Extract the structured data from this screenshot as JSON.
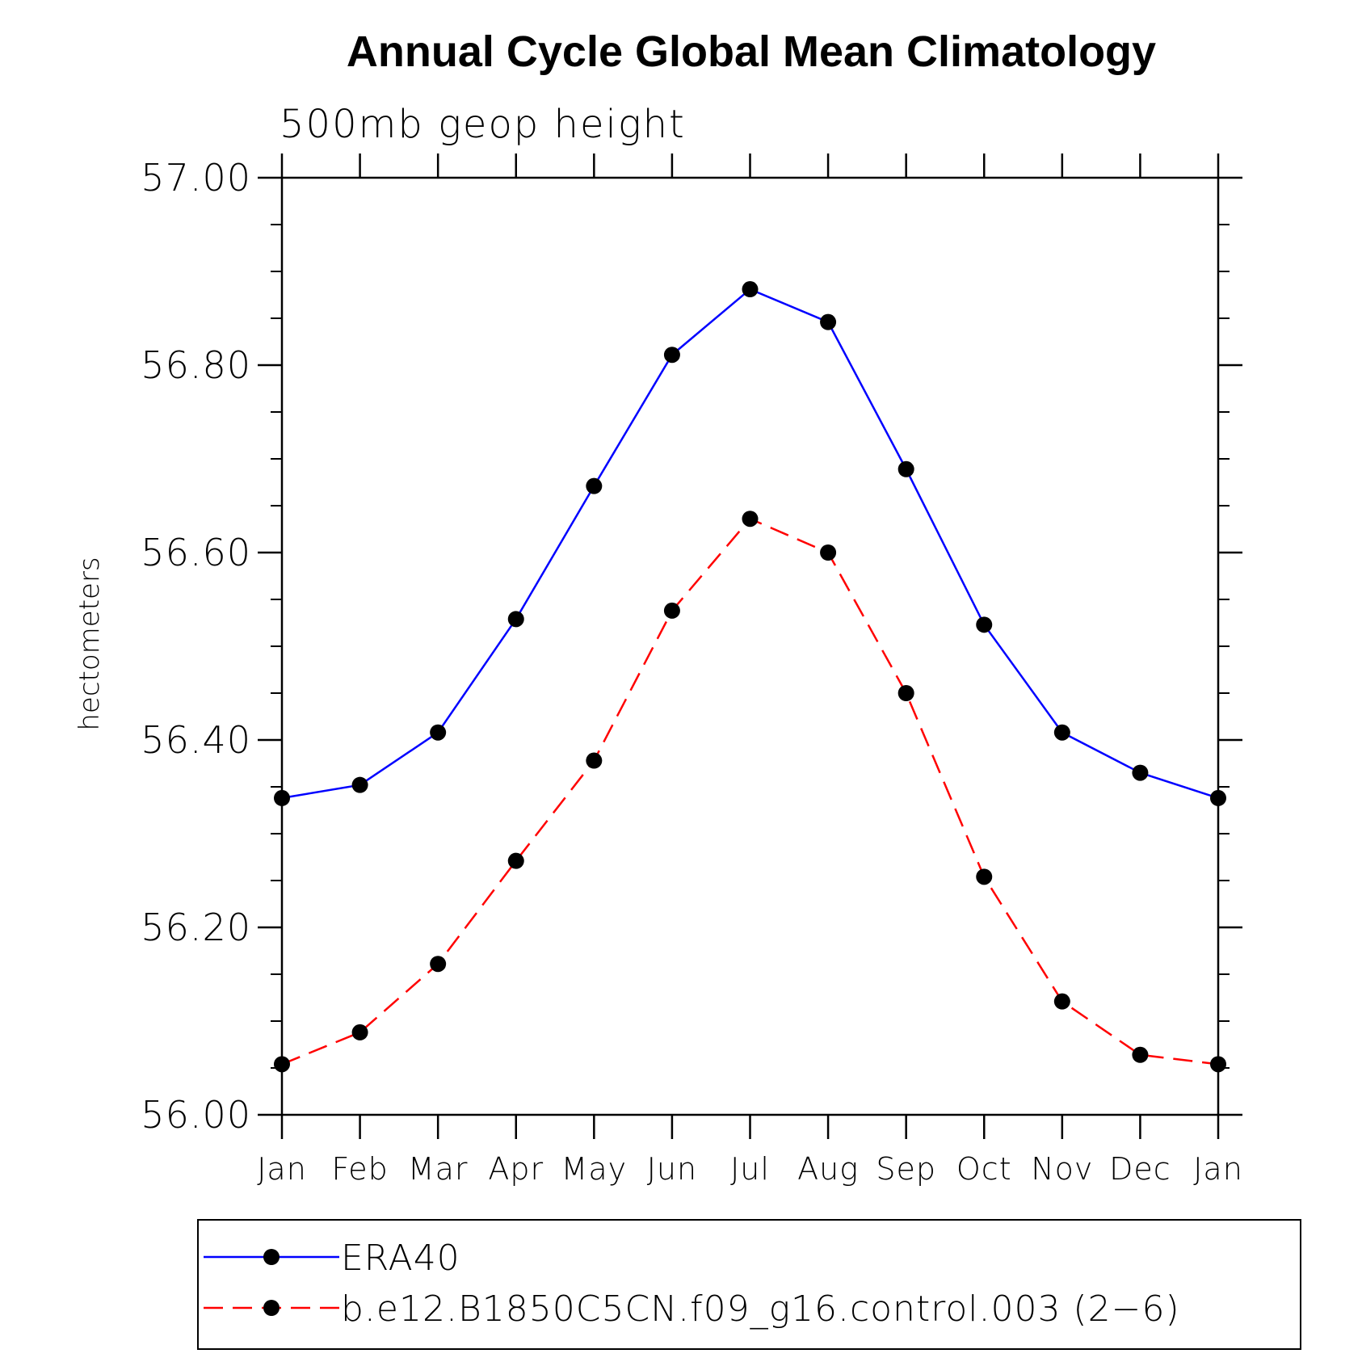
{
  "chart_data": {
    "type": "line",
    "title": "Annual Cycle Global Mean Climatology",
    "subtitle": "500mb geop height",
    "xlabel": "",
    "ylabel": "hectometers",
    "categories": [
      "Jan",
      "Feb",
      "Mar",
      "Apr",
      "May",
      "Jun",
      "Jul",
      "Aug",
      "Sep",
      "Oct",
      "Nov",
      "Dec",
      "Jan"
    ],
    "ylim": [
      56.0,
      57.0
    ],
    "y_ticks": [
      "56.00",
      "56.20",
      "56.40",
      "56.60",
      "56.80",
      "57.00"
    ],
    "y_tick_values": [
      56.0,
      56.2,
      56.4,
      56.6,
      56.8,
      57.0
    ],
    "y_minor_step": 0.05,
    "grid": false,
    "legend_position": "bottom",
    "series": [
      {
        "name": "ERA40",
        "color": "#0000ff",
        "line_style": "solid",
        "marker": "filled-circle",
        "values": [
          56.338,
          56.352,
          56.408,
          56.529,
          56.671,
          56.811,
          56.881,
          56.846,
          56.689,
          56.523,
          56.408,
          56.365,
          56.338
        ]
      },
      {
        "name": "b.e12.B1850C5CN.f09_g16.control.003 (2−6)",
        "color": "#ff0000",
        "line_style": "dashed",
        "marker": "filled-circle",
        "values": [
          56.054,
          56.088,
          56.161,
          56.271,
          56.378,
          56.538,
          56.636,
          56.6,
          56.45,
          56.254,
          56.121,
          56.064,
          56.054
        ]
      }
    ]
  }
}
